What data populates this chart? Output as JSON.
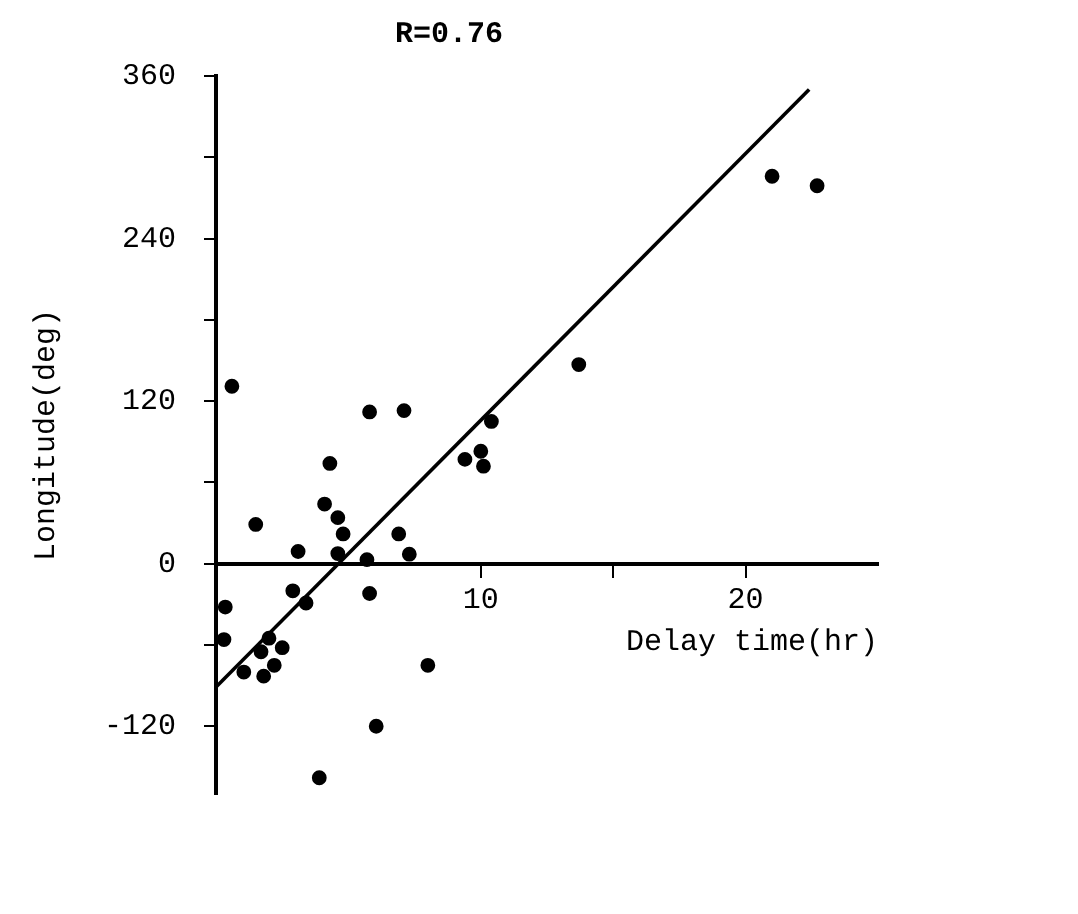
{
  "chart_data": {
    "type": "scatter",
    "title": "R=0.76",
    "xlabel": "Delay time(hr)",
    "ylabel": "Longitude(deg)",
    "xlim": [
      0,
      25
    ],
    "xticks": [
      {
        "value": 10,
        "label": "10"
      },
      {
        "value": 15,
        "label": null
      },
      {
        "value": 20,
        "label": "20"
      }
    ],
    "ylim": [
      -170,
      360
    ],
    "yticks": [
      {
        "value": -120,
        "label": "-120"
      },
      {
        "value": -60,
        "label": null
      },
      0,
      {
        "value": 60,
        "label": null
      },
      120,
      {
        "value": 180,
        "label": null
      },
      240,
      {
        "value": 300,
        "label": null
      },
      360
    ],
    "marker": "circle",
    "grid": false,
    "legend": false,
    "series": [
      {
        "color": "#000000",
        "x": [
          0.6,
          1.5,
          3.1,
          4.1,
          4.3,
          4.6,
          4.8,
          4.6,
          5.7,
          5.8,
          7.1,
          6.9,
          7.3,
          9.4,
          10.0,
          10.1,
          10.4,
          0.35,
          0.3,
          2.9,
          3.4,
          5.8,
          1.05,
          1.7,
          1.8,
          2.0,
          2.2,
          2.5,
          8.0,
          6.05,
          3.9,
          13.7,
          21.0,
          22.7
        ],
        "values": [
          131,
          29,
          9,
          44,
          74,
          34,
          22,
          7.5,
          3,
          112,
          113,
          22,
          7,
          77,
          83,
          72,
          105,
          -32,
          -56,
          -20,
          -29,
          -22,
          -80,
          -65,
          -83,
          -55,
          -75,
          -62,
          -75,
          -120,
          -158,
          147,
          286,
          279
        ]
      },
      {
        "type": "line",
        "color": "#000000",
        "marker": "none",
        "x": [
          0,
          22.4
        ],
        "values": [
          -91,
          350
        ]
      }
    ]
  }
}
